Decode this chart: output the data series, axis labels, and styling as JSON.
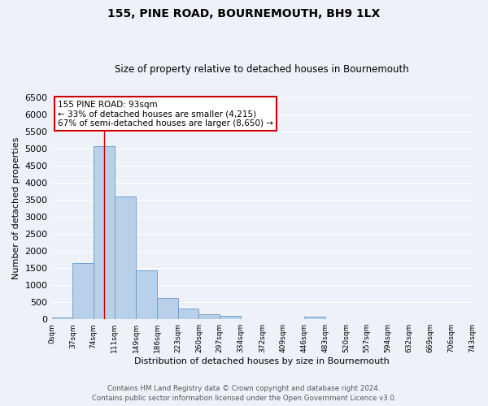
{
  "title": "155, PINE ROAD, BOURNEMOUTH, BH9 1LX",
  "subtitle": "Size of property relative to detached houses in Bournemouth",
  "xlabel": "Distribution of detached houses by size in Bournemouth",
  "ylabel": "Number of detached properties",
  "bar_color": "#b8d0e8",
  "bar_edge_color": "#6699cc",
  "background_color": "#eef2f8",
  "grid_color": "#ffffff",
  "bin_edges": [
    0,
    37,
    74,
    111,
    149,
    186,
    223,
    260,
    297,
    334,
    372,
    409,
    446,
    483,
    520,
    557,
    594,
    632,
    669,
    706,
    743
  ],
  "bin_labels": [
    "0sqm",
    "37sqm",
    "74sqm",
    "111sqm",
    "149sqm",
    "186sqm",
    "223sqm",
    "260sqm",
    "297sqm",
    "334sqm",
    "372sqm",
    "409sqm",
    "446sqm",
    "483sqm",
    "520sqm",
    "557sqm",
    "594sqm",
    "632sqm",
    "669sqm",
    "706sqm",
    "743sqm"
  ],
  "bar_heights": [
    50,
    1650,
    5075,
    3600,
    1420,
    620,
    310,
    150,
    110,
    0,
    0,
    0,
    75,
    0,
    0,
    0,
    0,
    0,
    0,
    0
  ],
  "ylim": [
    0,
    6500
  ],
  "yticks": [
    0,
    500,
    1000,
    1500,
    2000,
    2500,
    3000,
    3500,
    4000,
    4500,
    5000,
    5500,
    6000,
    6500
  ],
  "vline_x": 93,
  "vline_color": "#cc0000",
  "annotation_title": "155 PINE ROAD: 93sqm",
  "annotation_line1": "← 33% of detached houses are smaller (4,215)",
  "annotation_line2": "67% of semi-detached houses are larger (8,650) →",
  "annotation_box_color": "#ffffff",
  "annotation_box_edge_color": "#cc0000",
  "footer1": "Contains HM Land Registry data © Crown copyright and database right 2024.",
  "footer2": "Contains public sector information licensed under the Open Government Licence v3.0."
}
